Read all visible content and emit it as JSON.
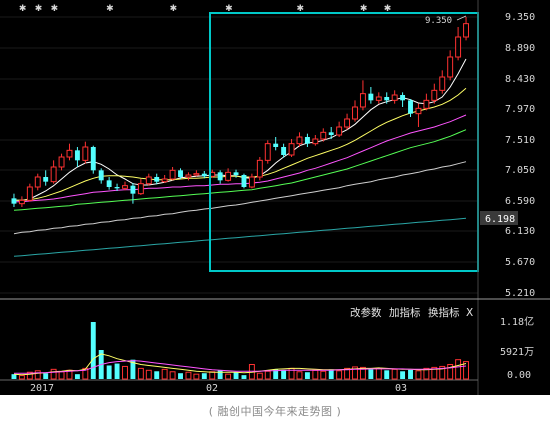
{
  "caption": "( 融创中国今年来走势图 )",
  "price_axis": {
    "labels": [
      "9.350",
      "8.890",
      "8.430",
      "7.970",
      "7.510",
      "7.050",
      "6.590",
      "6.130",
      "5.670",
      "5.210"
    ]
  },
  "current_price": "6.198",
  "peak_label": "9.350",
  "vol_axis": {
    "labels": [
      "1.18亿",
      "5921万",
      "0.00"
    ]
  },
  "x_axis": {
    "labels": [
      "2017",
      "02",
      "03"
    ]
  },
  "indicator_buttons": {
    "params": "改参数",
    "add": "加指标",
    "swap": "换指标",
    "close": "X"
  },
  "colors": {
    "bg": "#000000",
    "up": "#ff3232",
    "down": "#54ffff",
    "highlight": "#00c8c8",
    "current_price_bg": "#3a3a3a"
  },
  "chart_data": {
    "type": "candlestick",
    "price_range": [
      5.21,
      9.35
    ],
    "candles": [
      [
        6.63,
        6.55,
        6.7,
        6.5
      ],
      [
        6.55,
        6.6,
        6.66,
        6.5
      ],
      [
        6.6,
        6.8,
        6.85,
        6.58
      ],
      [
        6.8,
        6.95,
        7.0,
        6.75
      ],
      [
        6.95,
        6.88,
        7.05,
        6.82
      ],
      [
        6.88,
        7.1,
        7.2,
        6.85
      ],
      [
        7.1,
        7.25,
        7.3,
        7.05
      ],
      [
        7.25,
        7.35,
        7.45,
        7.2
      ],
      [
        7.35,
        7.2,
        7.4,
        7.1
      ],
      [
        7.2,
        7.4,
        7.48,
        7.15
      ],
      [
        7.4,
        7.05,
        7.42,
        7.0
      ],
      [
        7.05,
        6.9,
        7.08,
        6.85
      ],
      [
        6.9,
        6.8,
        6.95,
        6.76
      ],
      [
        6.8,
        6.78,
        6.85,
        6.74
      ],
      [
        6.78,
        6.82,
        6.88,
        6.75
      ],
      [
        6.82,
        6.7,
        6.86,
        6.55
      ],
      [
        6.7,
        6.85,
        6.92,
        6.68
      ],
      [
        6.85,
        6.95,
        7.0,
        6.82
      ],
      [
        6.95,
        6.88,
        7.0,
        6.84
      ],
      [
        6.88,
        6.92,
        6.98,
        6.86
      ],
      [
        6.92,
        7.05,
        7.1,
        6.9
      ],
      [
        7.05,
        6.95,
        7.08,
        6.92
      ],
      [
        6.95,
        6.98,
        7.02,
        6.9
      ],
      [
        6.98,
        7.0,
        7.05,
        6.96
      ],
      [
        7.0,
        6.96,
        7.04,
        6.93
      ],
      [
        6.96,
        7.02,
        7.06,
        6.94
      ],
      [
        7.02,
        6.9,
        7.05,
        6.85
      ],
      [
        6.9,
        7.02,
        7.08,
        6.88
      ],
      [
        7.02,
        6.98,
        7.06,
        6.94
      ],
      [
        6.98,
        6.8,
        7.0,
        6.78
      ],
      [
        6.8,
        6.95,
        7.0,
        6.78
      ],
      [
        6.95,
        7.2,
        7.25,
        6.9
      ],
      [
        7.2,
        7.45,
        7.5,
        7.15
      ],
      [
        7.45,
        7.4,
        7.55,
        7.35
      ],
      [
        7.4,
        7.28,
        7.45,
        7.24
      ],
      [
        7.28,
        7.45,
        7.52,
        7.25
      ],
      [
        7.45,
        7.55,
        7.62,
        7.4
      ],
      [
        7.55,
        7.45,
        7.6,
        7.4
      ],
      [
        7.45,
        7.52,
        7.58,
        7.42
      ],
      [
        7.52,
        7.62,
        7.68,
        7.48
      ],
      [
        7.62,
        7.58,
        7.7,
        7.52
      ],
      [
        7.58,
        7.7,
        7.78,
        7.55
      ],
      [
        7.7,
        7.82,
        7.9,
        7.66
      ],
      [
        7.82,
        8.0,
        8.1,
        7.78
      ],
      [
        8.0,
        8.2,
        8.4,
        7.95
      ],
      [
        8.2,
        8.1,
        8.3,
        8.05
      ],
      [
        8.1,
        8.15,
        8.22,
        8.05
      ],
      [
        8.15,
        8.1,
        8.22,
        8.05
      ],
      [
        8.1,
        8.18,
        8.25,
        8.05
      ],
      [
        8.18,
        8.1,
        8.22,
        8.0
      ],
      [
        8.1,
        7.9,
        8.12,
        7.85
      ],
      [
        7.9,
        7.98,
        8.05,
        7.7
      ],
      [
        7.98,
        8.1,
        8.2,
        7.95
      ],
      [
        8.1,
        8.25,
        8.35,
        8.05
      ],
      [
        8.25,
        8.45,
        8.55,
        8.2
      ],
      [
        8.45,
        8.75,
        8.85,
        8.4
      ],
      [
        8.75,
        9.05,
        9.2,
        8.7
      ],
      [
        9.05,
        9.25,
        9.35,
        9.0
      ]
    ],
    "ma_lines": [
      {
        "color": "#ffffff",
        "values": [
          6.6,
          6.6,
          6.62,
          6.68,
          6.74,
          6.82,
          6.92,
          7.02,
          7.1,
          7.16,
          7.18,
          7.14,
          7.07,
          6.98,
          6.92,
          6.85,
          6.83,
          6.83,
          6.85,
          6.87,
          6.9,
          6.94,
          6.95,
          6.96,
          6.97,
          6.98,
          6.98,
          6.97,
          6.97,
          6.94,
          6.93,
          6.97,
          7.05,
          7.16,
          7.25,
          7.33,
          7.42,
          7.46,
          7.47,
          7.5,
          7.54,
          7.6,
          7.66,
          7.74,
          7.85,
          7.96,
          8.04,
          8.08,
          8.11,
          8.14,
          8.11,
          8.06,
          8.05,
          8.08,
          8.15,
          8.3,
          8.5,
          8.72
        ]
      },
      {
        "color": "#ffff66",
        "values": [
          6.6,
          6.6,
          6.61,
          6.63,
          6.66,
          6.7,
          6.74,
          6.79,
          6.84,
          6.89,
          6.93,
          6.96,
          6.97,
          6.97,
          6.96,
          6.95,
          6.93,
          6.92,
          6.91,
          6.91,
          6.91,
          6.92,
          6.93,
          6.93,
          6.94,
          6.95,
          6.95,
          6.96,
          6.96,
          6.95,
          6.95,
          6.96,
          6.99,
          7.03,
          7.08,
          7.13,
          7.18,
          7.23,
          7.27,
          7.31,
          7.35,
          7.39,
          7.44,
          7.5,
          7.57,
          7.64,
          7.71,
          7.77,
          7.82,
          7.87,
          7.91,
          7.94,
          7.97,
          8.0,
          8.04,
          8.1,
          8.18,
          8.28
        ]
      },
      {
        "color": "#ff55ff",
        "values": [
          6.58,
          6.58,
          6.59,
          6.6,
          6.61,
          6.62,
          6.64,
          6.66,
          6.68,
          6.7,
          6.72,
          6.73,
          6.74,
          6.75,
          6.76,
          6.76,
          6.77,
          6.78,
          6.78,
          6.79,
          6.8,
          6.8,
          6.81,
          6.82,
          6.82,
          6.83,
          6.84,
          6.84,
          6.85,
          6.85,
          6.86,
          6.87,
          6.89,
          6.92,
          6.95,
          6.98,
          7.01,
          7.05,
          7.08,
          7.12,
          7.16,
          7.2,
          7.24,
          7.29,
          7.34,
          7.39,
          7.44,
          7.49,
          7.53,
          7.57,
          7.61,
          7.64,
          7.67,
          7.7,
          7.74,
          7.78,
          7.83,
          7.88
        ]
      },
      {
        "color": "#55ff55",
        "values": [
          6.45,
          6.46,
          6.47,
          6.48,
          6.49,
          6.5,
          6.51,
          6.52,
          6.54,
          6.55,
          6.56,
          6.57,
          6.58,
          6.59,
          6.6,
          6.61,
          6.62,
          6.63,
          6.64,
          6.65,
          6.66,
          6.67,
          6.68,
          6.69,
          6.7,
          6.71,
          6.72,
          6.73,
          6.74,
          6.75,
          6.76,
          6.78,
          6.8,
          6.82,
          6.84,
          6.86,
          6.89,
          6.92,
          6.95,
          6.98,
          7.01,
          7.04,
          7.07,
          7.11,
          7.15,
          7.19,
          7.23,
          7.27,
          7.31,
          7.35,
          7.39,
          7.42,
          7.45,
          7.48,
          7.52,
          7.56,
          7.61,
          7.66
        ]
      },
      {
        "color": "#cfcfcf",
        "values": [
          6.1,
          6.12,
          6.13,
          6.15,
          6.16,
          6.18,
          6.19,
          6.21,
          6.22,
          6.24,
          6.25,
          6.27,
          6.28,
          6.3,
          6.31,
          6.33,
          6.34,
          6.36,
          6.37,
          6.39,
          6.4,
          6.42,
          6.44,
          6.45,
          6.47,
          6.48,
          6.5,
          6.52,
          6.53,
          6.55,
          6.57,
          6.59,
          6.61,
          6.63,
          6.65,
          6.67,
          6.69,
          6.71,
          6.73,
          6.75,
          6.77,
          6.79,
          6.82,
          6.84,
          6.86,
          6.88,
          6.91,
          6.93,
          6.95,
          6.98,
          7.0,
          7.02,
          7.05,
          7.07,
          7.1,
          7.12,
          7.15,
          7.18
        ]
      },
      {
        "color": "#2aa6a6",
        "values": [
          5.76,
          5.77,
          5.78,
          5.79,
          5.8,
          5.81,
          5.82,
          5.83,
          5.84,
          5.85,
          5.86,
          5.87,
          5.88,
          5.89,
          5.9,
          5.91,
          5.92,
          5.93,
          5.94,
          5.95,
          5.96,
          5.97,
          5.98,
          5.99,
          6.0,
          6.01,
          6.02,
          6.03,
          6.04,
          6.05,
          6.06,
          6.07,
          6.08,
          6.09,
          6.1,
          6.11,
          6.12,
          6.13,
          6.14,
          6.15,
          6.16,
          6.17,
          6.18,
          6.19,
          6.2,
          6.21,
          6.22,
          6.23,
          6.24,
          6.25,
          6.26,
          6.27,
          6.28,
          6.29,
          6.3,
          6.31,
          6.32,
          6.33
        ]
      }
    ],
    "volume_range": [
      0,
      1.18
    ],
    "volumes": [
      0.1,
      0.07,
      0.14,
      0.17,
      0.12,
      0.2,
      0.15,
      0.18,
      0.1,
      0.22,
      1.18,
      0.6,
      0.28,
      0.32,
      0.26,
      0.4,
      0.22,
      0.18,
      0.16,
      0.2,
      0.15,
      0.12,
      0.14,
      0.1,
      0.12,
      0.15,
      0.18,
      0.1,
      0.14,
      0.08,
      0.3,
      0.12,
      0.16,
      0.2,
      0.18,
      0.22,
      0.15,
      0.14,
      0.18,
      0.16,
      0.2,
      0.17,
      0.22,
      0.25,
      0.24,
      0.2,
      0.22,
      0.18,
      0.2,
      0.16,
      0.19,
      0.17,
      0.22,
      0.24,
      0.26,
      0.3,
      0.4,
      0.36
    ],
    "vol_ma": [
      {
        "color": "#ffff66",
        "values": [
          0.1,
          0.09,
          0.1,
          0.12,
          0.13,
          0.15,
          0.16,
          0.18,
          0.17,
          0.2,
          0.42,
          0.52,
          0.48,
          0.42,
          0.38,
          0.34,
          0.3,
          0.28,
          0.26,
          0.24,
          0.22,
          0.2,
          0.18,
          0.16,
          0.15,
          0.14,
          0.14,
          0.14,
          0.14,
          0.13,
          0.14,
          0.16,
          0.18,
          0.2,
          0.21,
          0.22,
          0.22,
          0.21,
          0.2,
          0.19,
          0.19,
          0.19,
          0.2,
          0.21,
          0.22,
          0.22,
          0.23,
          0.22,
          0.21,
          0.2,
          0.2,
          0.19,
          0.19,
          0.2,
          0.21,
          0.24,
          0.28,
          0.32
        ]
      },
      {
        "color": "#ff55ff",
        "values": [
          0.12,
          0.12,
          0.12,
          0.13,
          0.13,
          0.14,
          0.15,
          0.16,
          0.17,
          0.18,
          0.24,
          0.3,
          0.34,
          0.36,
          0.37,
          0.38,
          0.37,
          0.35,
          0.33,
          0.31,
          0.29,
          0.27,
          0.25,
          0.23,
          0.21,
          0.19,
          0.18,
          0.17,
          0.16,
          0.16,
          0.16,
          0.16,
          0.17,
          0.17,
          0.18,
          0.18,
          0.18,
          0.18,
          0.18,
          0.18,
          0.18,
          0.19,
          0.19,
          0.2,
          0.2,
          0.21,
          0.21,
          0.21,
          0.21,
          0.21,
          0.2,
          0.2,
          0.2,
          0.21,
          0.22,
          0.23,
          0.25,
          0.27
        ]
      }
    ],
    "highlight": {
      "from_index": 29,
      "to_index": 57
    },
    "top_markers": [
      1,
      3,
      5,
      12,
      20,
      27,
      36,
      44,
      47
    ]
  }
}
